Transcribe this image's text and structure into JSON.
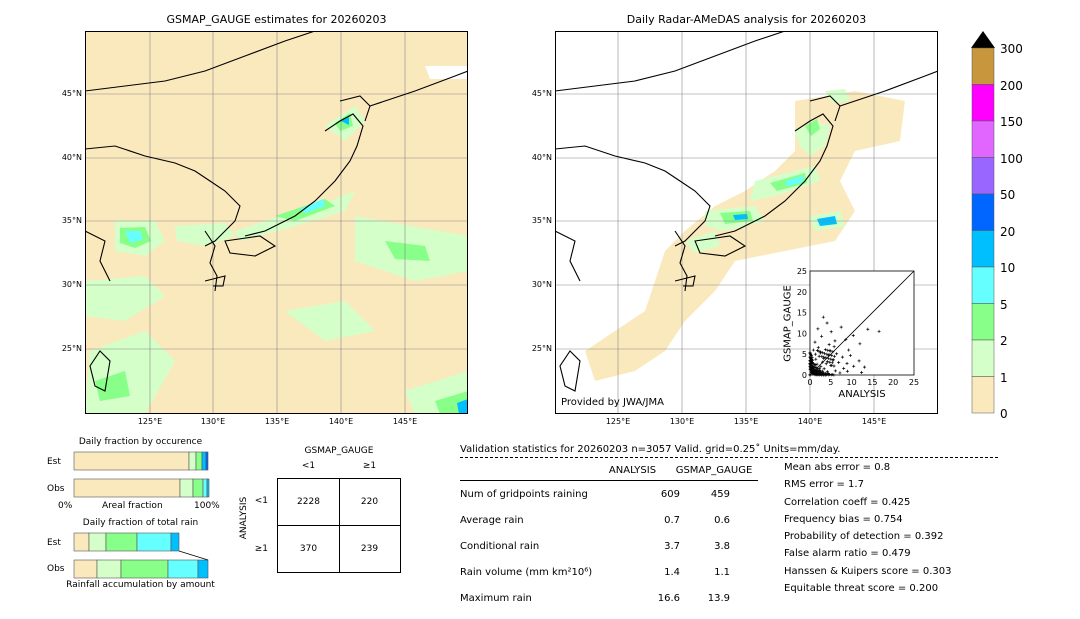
{
  "maps": {
    "left": {
      "title": "GSMAP_GAUGE estimates for 20260203",
      "lat_labels": [
        "45°N",
        "40°N",
        "35°N",
        "30°N",
        "25°N"
      ],
      "lon_labels": [
        "125°E",
        "130°E",
        "135°E",
        "140°E",
        "145°E"
      ]
    },
    "right": {
      "title": "Daily Radar-AMeDAS analysis for 20260203",
      "lat_labels": [
        "45°N",
        "40°N",
        "35°N",
        "30°N",
        "25°N"
      ],
      "lon_labels": [
        "125°E",
        "130°E",
        "135°E",
        "140°E",
        "145°E"
      ],
      "provider": "Provided by JWA/JMA"
    }
  },
  "colorbar": {
    "labels": [
      "300",
      "200",
      "150",
      "100",
      "50",
      "20",
      "10",
      "5",
      "2",
      "1",
      "0"
    ],
    "colors": [
      "#c8963c",
      "#ff00ff",
      "#e066ff",
      "#9966ff",
      "#0066ff",
      "#00bfff",
      "#66ffff",
      "#88ff88",
      "#d4ffc8",
      "#fbe9be"
    ],
    "extend_color": "#000000"
  },
  "scatter": {
    "xlabel": "ANALYSIS",
    "ylabel": "GSMAP_GAUGE",
    "ticks": [
      "0",
      "5",
      "10",
      "15",
      "20",
      "25"
    ]
  },
  "fraction_occurrence": {
    "title": "Daily fraction by occurence",
    "rows": [
      "Est",
      "Obs"
    ],
    "axis_left": "0%",
    "axis_mid": "Areal fraction",
    "axis_right": "100%"
  },
  "fraction_rain": {
    "title": "Daily fraction of total rain",
    "rows": [
      "Est",
      "Obs"
    ],
    "axis_label": "Rainfall accumulation by amount"
  },
  "contingency": {
    "col_title": "GSMAP_GAUGE",
    "col_labels": [
      "<1",
      "≥1"
    ],
    "row_title": "ANALYSIS",
    "row_labels": [
      "<1",
      "≥1"
    ],
    "cells": [
      [
        "2228",
        "220"
      ],
      [
        "370",
        "239"
      ]
    ]
  },
  "validation": {
    "header": "Validation statistics for 20260203  n=3057 Valid. grid=0.25˚ Units=mm/day.",
    "col_analysis": "ANALYSIS",
    "col_gsmap": "GSMAP_GAUGE",
    "rows": [
      {
        "label": "Num of gridpoints raining",
        "a": "609",
        "g": "459"
      },
      {
        "label": "Average rain",
        "a": "0.7",
        "g": "0.6"
      },
      {
        "label": "Conditional rain",
        "a": "3.7",
        "g": "3.8"
      },
      {
        "label": "Rain volume (mm km²10⁶)",
        "a": "1.4",
        "g": "1.1"
      },
      {
        "label": "Maximum rain",
        "a": "16.6",
        "g": "13.9"
      }
    ],
    "scores": [
      "Mean abs error =    0.8",
      "RMS error =    1.7",
      "Correlation coeff =  0.425",
      "Frequency bias =  0.754",
      "Probability of detection =  0.392",
      "False alarm ratio =  0.479",
      "Hanssen & Kuipers score =  0.303",
      "Equitable threat score =  0.200"
    ]
  },
  "chart_data": [
    {
      "type": "heatmap",
      "title": "GSMAP_GAUGE estimates for 20260203",
      "xlabel": "",
      "ylabel": "",
      "x_ticks": [
        "125°E",
        "130°E",
        "135°E",
        "140°E",
        "145°E"
      ],
      "y_ticks": [
        "45°N",
        "40°N",
        "35°N",
        "30°N",
        "25°N"
      ]
    },
    {
      "type": "heatmap",
      "title": "Daily Radar-AMeDAS analysis for 20260203",
      "xlabel": "",
      "ylabel": "",
      "x_ticks": [
        "125°E",
        "130°E",
        "135°E",
        "140°E",
        "145°E"
      ],
      "y_ticks": [
        "45°N",
        "40°N",
        "35°N",
        "30°N",
        "25°N"
      ]
    },
    {
      "type": "scatter",
      "xlabel": "ANALYSIS",
      "ylabel": "GSMAP_GAUGE",
      "xlim": [
        0,
        25
      ],
      "ylim": [
        0,
        25
      ],
      "ticks": [
        0,
        5,
        10,
        15,
        20,
        25
      ],
      "points": [
        [
          16.6,
          10.5
        ],
        [
          13.9,
          11.0
        ],
        [
          8.6,
          8.5
        ],
        [
          12.0,
          7.5
        ],
        [
          10.4,
          9.5
        ],
        [
          9.3,
          6.0
        ],
        [
          7.5,
          11.5
        ],
        [
          6.0,
          8.2
        ],
        [
          4.1,
          12.5
        ],
        [
          3.2,
          13.9
        ],
        [
          5.1,
          10.4
        ],
        [
          2.8,
          9.3
        ],
        [
          1.9,
          11.1
        ],
        [
          4.6,
          7.3
        ],
        [
          3.7,
          6.1
        ],
        [
          2.5,
          5.3
        ],
        [
          1.2,
          7.9
        ],
        [
          0.8,
          6.0
        ],
        [
          6.4,
          5.1
        ],
        [
          7.8,
          4.3
        ],
        [
          5.5,
          3.6
        ],
        [
          8.9,
          2.8
        ],
        [
          10.5,
          2.1
        ],
        [
          11.8,
          3.4
        ],
        [
          13.1,
          1.9
        ],
        [
          9.7,
          4.7
        ],
        [
          0.5,
          4.2
        ],
        [
          1.4,
          3.8
        ],
        [
          2.2,
          4.5
        ],
        [
          3.0,
          3.1
        ],
        [
          3.9,
          2.7
        ],
        [
          4.4,
          4.8
        ],
        [
          5.0,
          2.3
        ],
        [
          0.3,
          3.3
        ],
        [
          1.7,
          2.6
        ],
        [
          2.6,
          2.0
        ],
        [
          0.9,
          1.8
        ],
        [
          1.5,
          1.2
        ],
        [
          2.3,
          0.9
        ],
        [
          3.4,
          1.5
        ],
        [
          0.4,
          0.6
        ],
        [
          0.7,
          1.1
        ],
        [
          1.1,
          0.4
        ],
        [
          0.2,
          1.6
        ],
        [
          1.8,
          0.7
        ],
        [
          2.9,
          0.3
        ],
        [
          4.2,
          0.8
        ],
        [
          6.1,
          1.0
        ],
        [
          7.2,
          0.5
        ],
        [
          0.1,
          2.4
        ],
        [
          0.6,
          3.0
        ],
        [
          1.3,
          5.0
        ],
        [
          2.0,
          6.6
        ],
        [
          3.3,
          4.0
        ],
        [
          4.8,
          5.9
        ],
        [
          5.8,
          6.8
        ],
        [
          6.9,
          3.0
        ],
        [
          8.1,
          1.6
        ],
        [
          9.0,
          0.9
        ],
        [
          12.4,
          0.6
        ]
      ]
    }
  ]
}
